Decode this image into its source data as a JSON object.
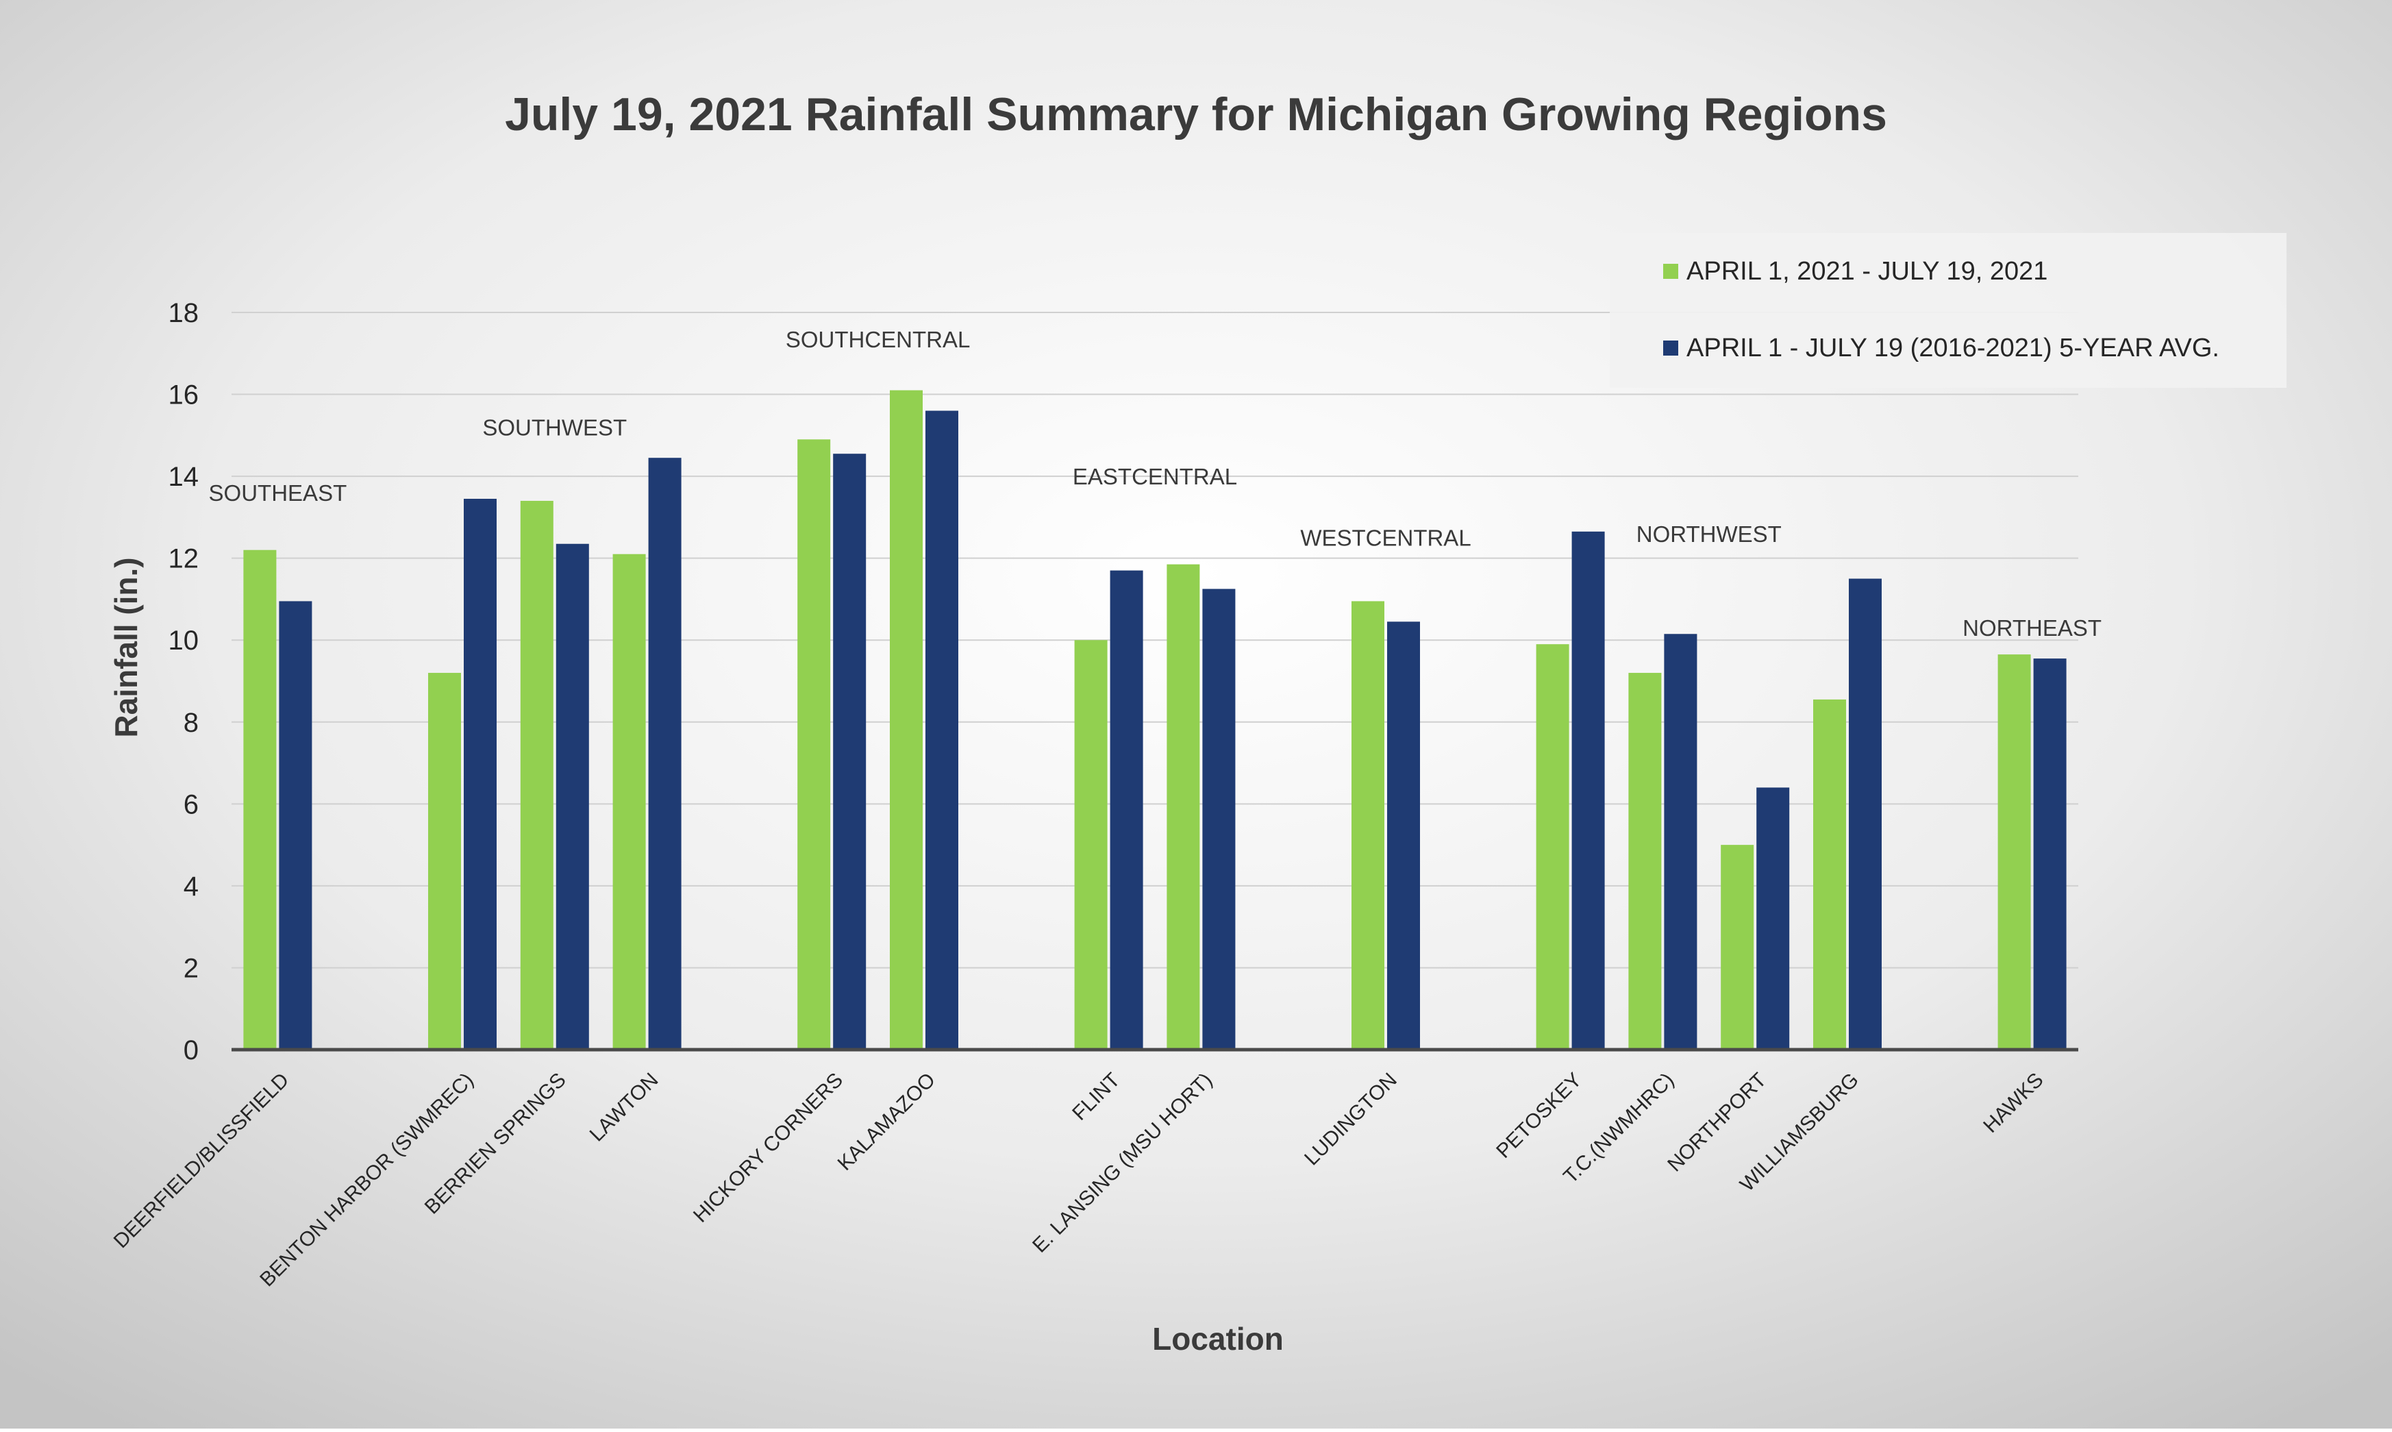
{
  "chart_data": {
    "type": "bar",
    "title": "July 19, 2021 Rainfall Summary for Michigan Growing Regions",
    "xlabel": "Location",
    "ylabel": "Rainfall (in.)",
    "ylim": [
      0,
      18
    ],
    "yticks": [
      0,
      2,
      4,
      6,
      8,
      10,
      12,
      14,
      16,
      18
    ],
    "grid": true,
    "legend_position": "top-right",
    "categories": [
      "DEERFIELD/BLISSFIELD",
      "",
      "BENTON HARBOR (SWMREC)",
      "BERRIEN SPRINGS",
      "LAWTON",
      "",
      "HICKORY CORNERS",
      "KALAMAZOO",
      "",
      "FLINT",
      "E. LANSING (MSU HORT)",
      "",
      "LUDINGTON",
      "",
      "PETOSKEY",
      "T.C.(NWMHRC)",
      "NORTHPORT",
      "WILLIAMSBURG",
      "",
      "HAWKS"
    ],
    "series": [
      {
        "name": "APRIL 1, 2021 - JULY 19, 2021",
        "color": "#92d050",
        "values": [
          12.2,
          null,
          9.2,
          13.4,
          12.1,
          null,
          14.9,
          16.1,
          null,
          10.0,
          11.85,
          null,
          10.95,
          null,
          9.9,
          9.2,
          5.0,
          8.55,
          null,
          9.65
        ]
      },
      {
        "name": "APRIL 1 - JULY 19 (2016-2021) 5-YEAR AVG.",
        "color": "#1f3b73",
        "values": [
          10.95,
          null,
          13.45,
          12.35,
          14.45,
          null,
          14.55,
          15.6,
          null,
          11.7,
          11.25,
          null,
          10.45,
          null,
          12.65,
          10.15,
          6.4,
          11.5,
          null,
          9.55
        ]
      }
    ],
    "annotations": [
      {
        "text": "SOUTHEAST",
        "category_index": 0,
        "value": 13.4
      },
      {
        "text": "SOUTHWEST",
        "category_index": 3,
        "value": 15.0
      },
      {
        "text": "SOUTHCENTRAL",
        "category_index": 6.5,
        "value": 17.15
      },
      {
        "text": "EASTCENTRAL",
        "category_index": 9.5,
        "value": 13.8
      },
      {
        "text": "WESTCENTRAL",
        "category_index": 12,
        "value": 12.3
      },
      {
        "text": "NORTHWEST",
        "category_index": 15.5,
        "value": 12.4
      },
      {
        "text": "NORTHEAST",
        "category_index": 19,
        "value": 10.1
      }
    ]
  }
}
